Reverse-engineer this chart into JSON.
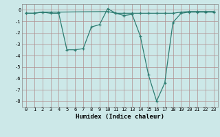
{
  "line1_x": [
    0,
    1,
    2,
    3,
    4,
    5,
    6,
    7,
    8,
    9,
    10,
    11,
    12,
    13,
    14,
    15,
    16,
    17,
    18,
    19,
    20,
    21,
    22,
    23
  ],
  "line1_y": [
    -0.3,
    -0.3,
    -0.2,
    -0.3,
    -0.3,
    -3.5,
    -3.5,
    -3.4,
    -1.5,
    -1.3,
    0.1,
    -0.3,
    -0.5,
    -0.4,
    -2.3,
    -5.7,
    -8.0,
    -6.4,
    -1.1,
    -0.3,
    -0.2,
    -0.2,
    -0.2,
    -0.2
  ],
  "line2_x": [
    0,
    1,
    2,
    3,
    4,
    10,
    11,
    12,
    13,
    14,
    15,
    16,
    17,
    18,
    19,
    20,
    21,
    22,
    23
  ],
  "line2_y": [
    -0.3,
    -0.3,
    -0.2,
    -0.2,
    -0.2,
    -0.15,
    -0.3,
    -0.3,
    -0.3,
    -0.3,
    -0.3,
    -0.3,
    -0.3,
    -0.3,
    -0.2,
    -0.15,
    -0.15,
    -0.15,
    -0.15
  ],
  "line_color": "#2e7d72",
  "bg_color": "#cce8e8",
  "grid_color": "#b09090",
  "xlabel": "Humidex (Indice chaleur)",
  "xlim": [
    -0.5,
    23.5
  ],
  "ylim": [
    -8.5,
    0.5
  ],
  "yticks": [
    0,
    -1,
    -2,
    -3,
    -4,
    -5,
    -6,
    -7,
    -8
  ],
  "xticks": [
    0,
    1,
    2,
    3,
    4,
    5,
    6,
    7,
    8,
    9,
    10,
    11,
    12,
    13,
    14,
    15,
    16,
    17,
    18,
    19,
    20,
    21,
    22,
    23
  ],
  "tick_fontsize": 5,
  "xlabel_fontsize": 6.5,
  "marker": "+",
  "markersize": 3.5,
  "linewidth": 0.9
}
